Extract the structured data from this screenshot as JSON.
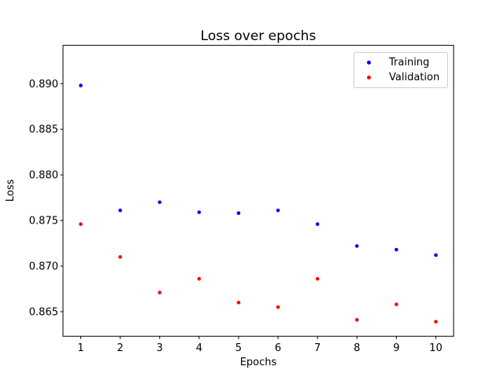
{
  "legend": {
    "position": "upper right",
    "entries": [
      {
        "label": "Training",
        "color": "#0000ff"
      },
      {
        "label": "Validation",
        "color": "#ff0000"
      }
    ]
  },
  "chart_data": {
    "type": "scatter",
    "title": "Loss over epochs",
    "xlabel": "Epochs",
    "ylabel": "Loss",
    "x": [
      1,
      2,
      3,
      4,
      5,
      6,
      7,
      8,
      9,
      10
    ],
    "series": [
      {
        "name": "Training",
        "color": "#0000ff",
        "values": [
          0.8898,
          0.8761,
          0.877,
          0.8759,
          0.8758,
          0.8761,
          0.8746,
          0.8722,
          0.8718,
          0.8712
        ]
      },
      {
        "name": "Validation",
        "color": "#ff0000",
        "values": [
          0.8746,
          0.871,
          0.8671,
          0.8686,
          0.866,
          0.8655,
          0.8686,
          0.8641,
          0.8658,
          0.8639
        ]
      }
    ],
    "xlim": [
      0.55,
      10.45
    ],
    "ylim": [
      0.8623,
      0.8942
    ],
    "xticks": [
      1,
      2,
      3,
      4,
      5,
      6,
      7,
      8,
      9,
      10
    ],
    "xtick_labels": [
      "1",
      "2",
      "3",
      "4",
      "5",
      "6",
      "7",
      "8",
      "9",
      "10"
    ],
    "yticks": [
      0.865,
      0.87,
      0.875,
      0.88,
      0.885,
      0.89
    ],
    "ytick_labels": [
      "0.865",
      "0.870",
      "0.875",
      "0.880",
      "0.885",
      "0.890"
    ],
    "grid": false,
    "legend_position": "upper right",
    "marker": "dot",
    "marker_size_px": 2.3
  }
}
